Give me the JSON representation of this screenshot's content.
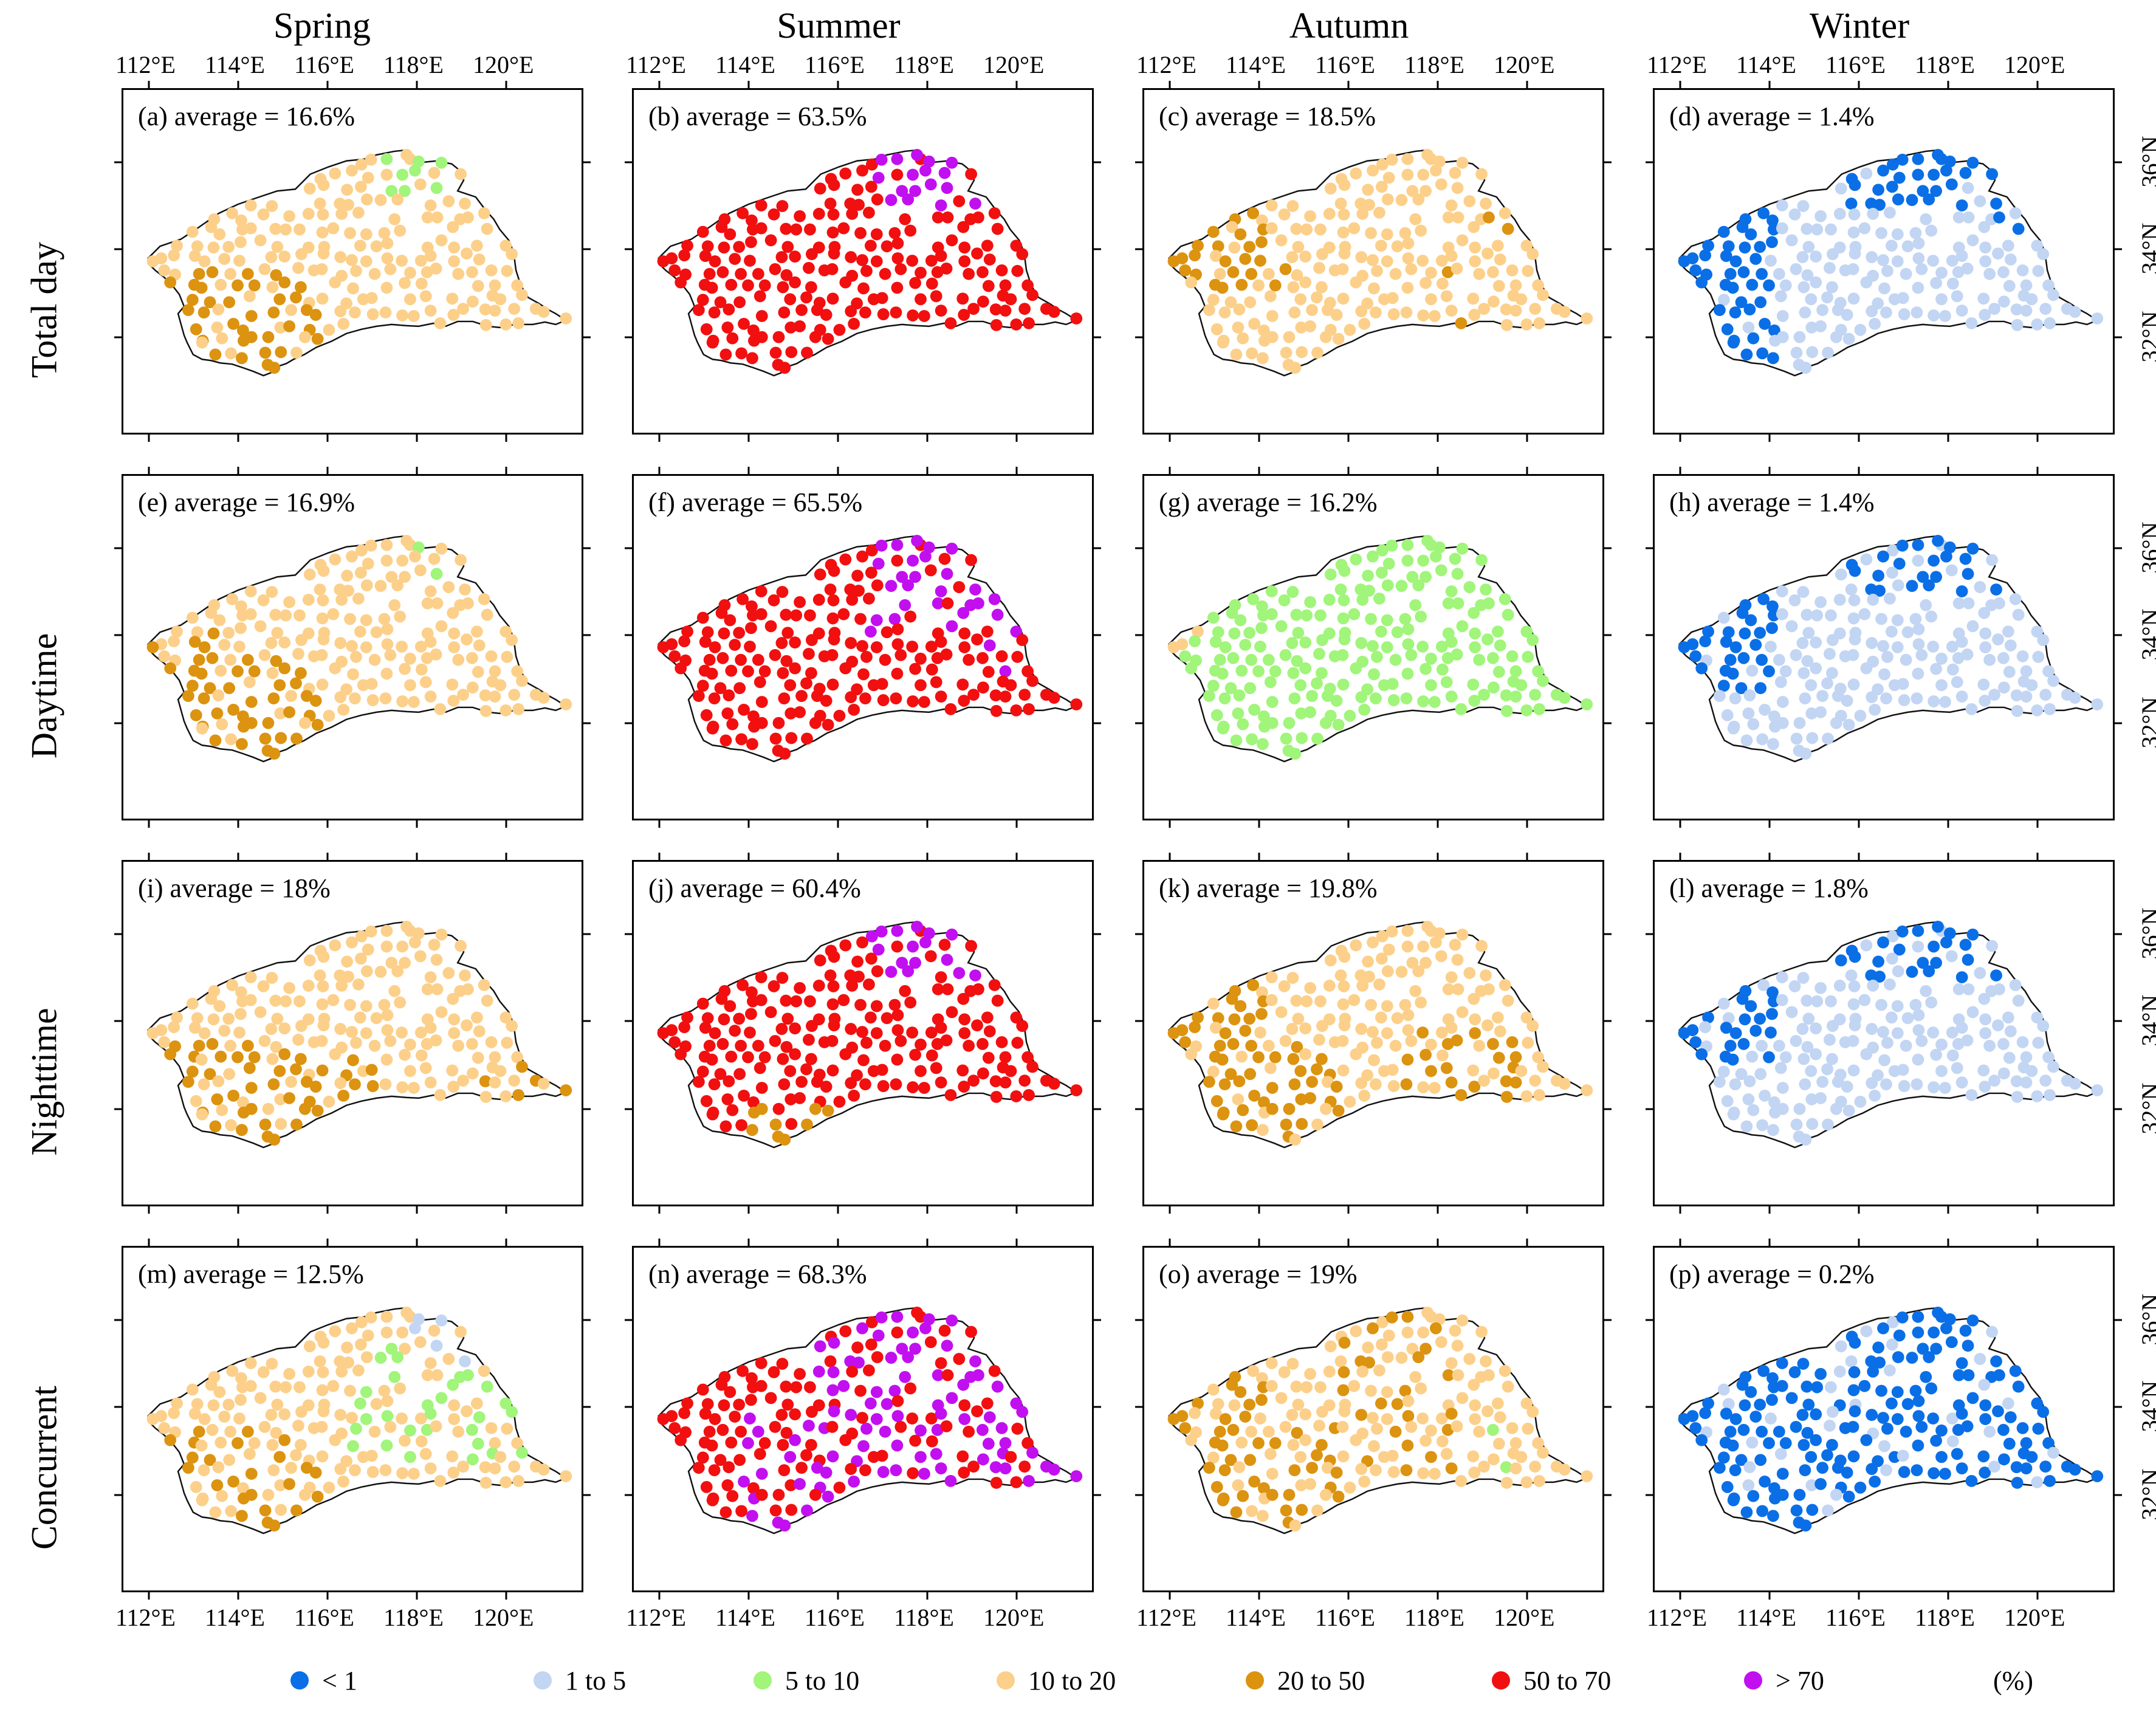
{
  "columns": [
    "Spring",
    "Summer",
    "Autumn",
    "Winter"
  ],
  "rows": [
    "Total day",
    "Daytime",
    "Nighttime",
    "Concurrent"
  ],
  "lon_ticks": [
    "112°E",
    "114°E",
    "116°E",
    "118°E",
    "120°E"
  ],
  "lat_ticks": [
    "32°N",
    "34°N",
    "36°N"
  ],
  "panels": [
    {
      "id": "a",
      "label": "(a) average = 16.6%",
      "scheme": "spring_total"
    },
    {
      "id": "b",
      "label": "(b) average = 63.5%",
      "scheme": "summer_total"
    },
    {
      "id": "c",
      "label": "(c) average = 18.5%",
      "scheme": "autumn_total"
    },
    {
      "id": "d",
      "label": "(d) average = 1.4%",
      "scheme": "winter_total"
    },
    {
      "id": "e",
      "label": "(e) average = 16.9%",
      "scheme": "spring_day"
    },
    {
      "id": "f",
      "label": "(f) average = 65.5%",
      "scheme": "summer_day"
    },
    {
      "id": "g",
      "label": "(g) average = 16.2%",
      "scheme": "autumn_day"
    },
    {
      "id": "h",
      "label": "(h) average = 1.4%",
      "scheme": "winter_day"
    },
    {
      "id": "i",
      "label": "(i) average = 18%",
      "scheme": "spring_night"
    },
    {
      "id": "j",
      "label": "(j) average = 60.4%",
      "scheme": "summer_night"
    },
    {
      "id": "k",
      "label": "(k) average = 19.8%",
      "scheme": "autumn_night"
    },
    {
      "id": "l",
      "label": "(l) average = 1.8%",
      "scheme": "winter_night"
    },
    {
      "id": "m",
      "label": "(m) average = 12.5%",
      "scheme": "spring_conc"
    },
    {
      "id": "n",
      "label": "(n) average = 68.3%",
      "scheme": "summer_conc"
    },
    {
      "id": "o",
      "label": "(o) average = 19%",
      "scheme": "autumn_conc"
    },
    {
      "id": "p",
      "label": "(p) average = 0.2%",
      "scheme": "winter_conc"
    }
  ],
  "legend": [
    {
      "label": "< 1",
      "color": "#0a6fe6"
    },
    {
      "label": "1 to 5",
      "color": "#c2d5f3"
    },
    {
      "label": "5 to 10",
      "color": "#a0f57a"
    },
    {
      "label": "10 to 20",
      "color": "#fcd08a"
    },
    {
      "label": "20 to 50",
      "color": "#dc9310"
    },
    {
      "label": "50 to 70",
      "color": "#f20f0f"
    },
    {
      "label": "> 70",
      "color": "#c20ff0"
    }
  ],
  "unit": "(%)"
}
